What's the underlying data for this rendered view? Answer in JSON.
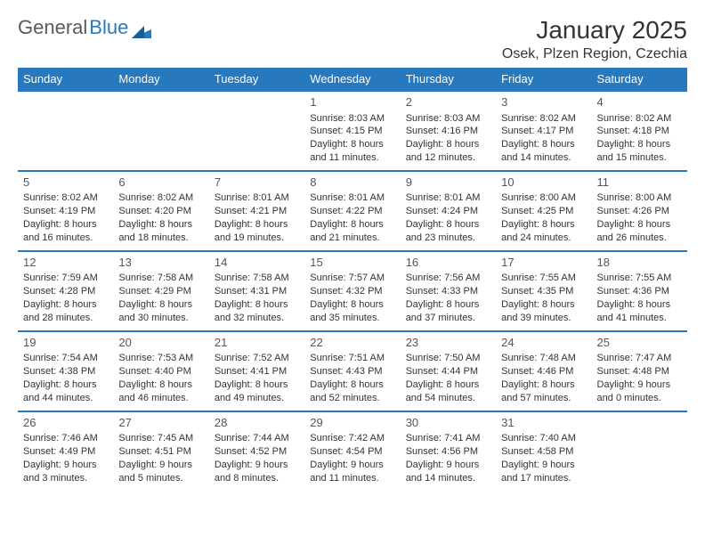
{
  "logo": {
    "text1": "General",
    "text2": "Blue"
  },
  "title": "January 2025",
  "location": "Osek, Plzen Region, Czechia",
  "columns": [
    "Sunday",
    "Monday",
    "Tuesday",
    "Wednesday",
    "Thursday",
    "Friday",
    "Saturday"
  ],
  "header_bg": "#2878bd",
  "header_fg": "#ffffff",
  "border_color": "#2878bd",
  "weeks": [
    [
      null,
      null,
      null,
      {
        "n": "1",
        "sr": "8:03 AM",
        "ss": "4:15 PM",
        "dl": "8 hours and 11 minutes."
      },
      {
        "n": "2",
        "sr": "8:03 AM",
        "ss": "4:16 PM",
        "dl": "8 hours and 12 minutes."
      },
      {
        "n": "3",
        "sr": "8:02 AM",
        "ss": "4:17 PM",
        "dl": "8 hours and 14 minutes."
      },
      {
        "n": "4",
        "sr": "8:02 AM",
        "ss": "4:18 PM",
        "dl": "8 hours and 15 minutes."
      }
    ],
    [
      {
        "n": "5",
        "sr": "8:02 AM",
        "ss": "4:19 PM",
        "dl": "8 hours and 16 minutes."
      },
      {
        "n": "6",
        "sr": "8:02 AM",
        "ss": "4:20 PM",
        "dl": "8 hours and 18 minutes."
      },
      {
        "n": "7",
        "sr": "8:01 AM",
        "ss": "4:21 PM",
        "dl": "8 hours and 19 minutes."
      },
      {
        "n": "8",
        "sr": "8:01 AM",
        "ss": "4:22 PM",
        "dl": "8 hours and 21 minutes."
      },
      {
        "n": "9",
        "sr": "8:01 AM",
        "ss": "4:24 PM",
        "dl": "8 hours and 23 minutes."
      },
      {
        "n": "10",
        "sr": "8:00 AM",
        "ss": "4:25 PM",
        "dl": "8 hours and 24 minutes."
      },
      {
        "n": "11",
        "sr": "8:00 AM",
        "ss": "4:26 PM",
        "dl": "8 hours and 26 minutes."
      }
    ],
    [
      {
        "n": "12",
        "sr": "7:59 AM",
        "ss": "4:28 PM",
        "dl": "8 hours and 28 minutes."
      },
      {
        "n": "13",
        "sr": "7:58 AM",
        "ss": "4:29 PM",
        "dl": "8 hours and 30 minutes."
      },
      {
        "n": "14",
        "sr": "7:58 AM",
        "ss": "4:31 PM",
        "dl": "8 hours and 32 minutes."
      },
      {
        "n": "15",
        "sr": "7:57 AM",
        "ss": "4:32 PM",
        "dl": "8 hours and 35 minutes."
      },
      {
        "n": "16",
        "sr": "7:56 AM",
        "ss": "4:33 PM",
        "dl": "8 hours and 37 minutes."
      },
      {
        "n": "17",
        "sr": "7:55 AM",
        "ss": "4:35 PM",
        "dl": "8 hours and 39 minutes."
      },
      {
        "n": "18",
        "sr": "7:55 AM",
        "ss": "4:36 PM",
        "dl": "8 hours and 41 minutes."
      }
    ],
    [
      {
        "n": "19",
        "sr": "7:54 AM",
        "ss": "4:38 PM",
        "dl": "8 hours and 44 minutes."
      },
      {
        "n": "20",
        "sr": "7:53 AM",
        "ss": "4:40 PM",
        "dl": "8 hours and 46 minutes."
      },
      {
        "n": "21",
        "sr": "7:52 AM",
        "ss": "4:41 PM",
        "dl": "8 hours and 49 minutes."
      },
      {
        "n": "22",
        "sr": "7:51 AM",
        "ss": "4:43 PM",
        "dl": "8 hours and 52 minutes."
      },
      {
        "n": "23",
        "sr": "7:50 AM",
        "ss": "4:44 PM",
        "dl": "8 hours and 54 minutes."
      },
      {
        "n": "24",
        "sr": "7:48 AM",
        "ss": "4:46 PM",
        "dl": "8 hours and 57 minutes."
      },
      {
        "n": "25",
        "sr": "7:47 AM",
        "ss": "4:48 PM",
        "dl": "9 hours and 0 minutes."
      }
    ],
    [
      {
        "n": "26",
        "sr": "7:46 AM",
        "ss": "4:49 PM",
        "dl": "9 hours and 3 minutes."
      },
      {
        "n": "27",
        "sr": "7:45 AM",
        "ss": "4:51 PM",
        "dl": "9 hours and 5 minutes."
      },
      {
        "n": "28",
        "sr": "7:44 AM",
        "ss": "4:52 PM",
        "dl": "9 hours and 8 minutes."
      },
      {
        "n": "29",
        "sr": "7:42 AM",
        "ss": "4:54 PM",
        "dl": "9 hours and 11 minutes."
      },
      {
        "n": "30",
        "sr": "7:41 AM",
        "ss": "4:56 PM",
        "dl": "9 hours and 14 minutes."
      },
      {
        "n": "31",
        "sr": "7:40 AM",
        "ss": "4:58 PM",
        "dl": "9 hours and 17 minutes."
      },
      null
    ]
  ],
  "labels": {
    "sunrise": "Sunrise:",
    "sunset": "Sunset:",
    "daylight": "Daylight:"
  }
}
